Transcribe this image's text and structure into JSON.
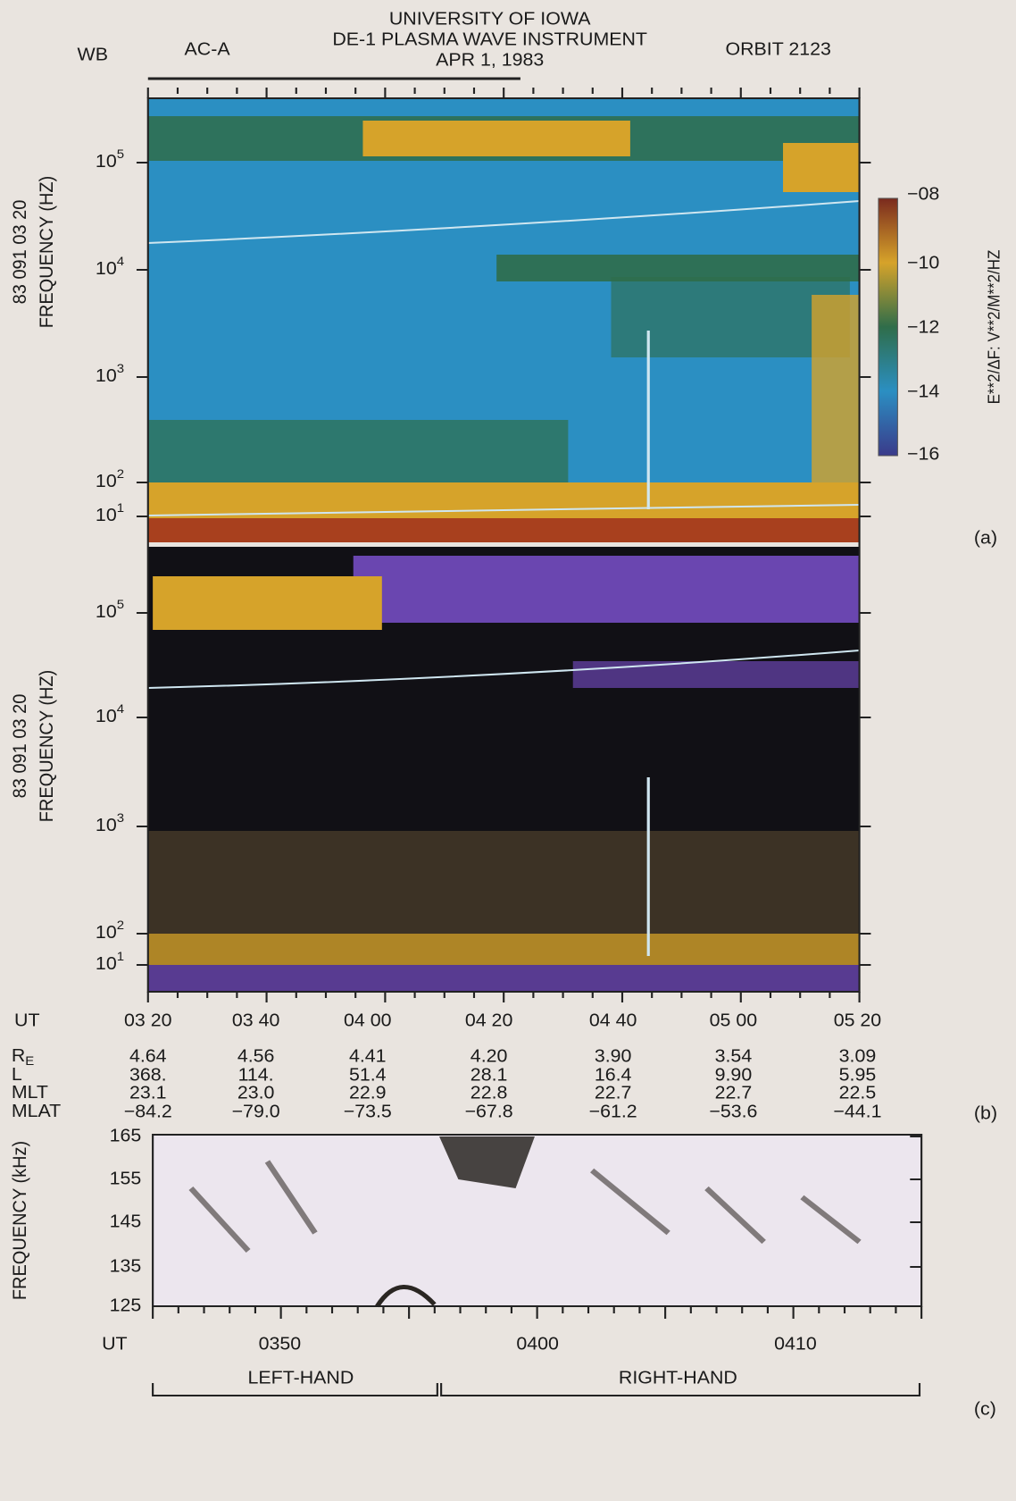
{
  "header": {
    "instrument_mode": "WB",
    "antenna": "AC-A",
    "title_lines": [
      "UNIVERSITY OF IOWA",
      "DE-1 PLASMA WAVE INSTRUMENT",
      "APR 1, 1983"
    ],
    "orbit": "ORBIT 2123"
  },
  "panel_a": {
    "y_label_lines": [
      "83 091 03 20",
      "FREQUENCY (HZ)"
    ],
    "y_ticks": [
      {
        "base": "10",
        "exp": "5"
      },
      {
        "base": "10",
        "exp": "4"
      },
      {
        "base": "10",
        "exp": "3"
      },
      {
        "base": "10",
        "exp": "2"
      },
      {
        "base": "10",
        "exp": "1"
      }
    ],
    "colorbar": {
      "label": "E**2/ΔF: V**2/M**2/HZ",
      "ticks": [
        "−08",
        "−10",
        "−12",
        "−14",
        "−16"
      ]
    },
    "tag": "(a)"
  },
  "panel_b": {
    "y_label_lines": [
      "83 091 03 20",
      "FREQUENCY (HZ)"
    ],
    "y_ticks": [
      {
        "base": "10",
        "exp": "5"
      },
      {
        "base": "10",
        "exp": "4"
      },
      {
        "base": "10",
        "exp": "3"
      },
      {
        "base": "10",
        "exp": "2"
      },
      {
        "base": "10",
        "exp": "1"
      }
    ],
    "tag": "(b)"
  },
  "ephemeris": {
    "time_label": "UT",
    "times": [
      "03 20",
      "03 40",
      "04 00",
      "04 20",
      "04 40",
      "05 00",
      "05 20"
    ],
    "rows": [
      {
        "label": {
          "base": "R",
          "sub": "E"
        },
        "values": [
          "4.64",
          "4.56",
          "4.41",
          "4.20",
          "3.90",
          "3.54",
          "3.09"
        ]
      },
      {
        "label": {
          "base": "L"
        },
        "values": [
          "368.",
          "114.",
          "51.4",
          "28.1",
          "16.4",
          "9.90",
          "5.95"
        ]
      },
      {
        "label": {
          "base": "MLT"
        },
        "values": [
          "23.1",
          "23.0",
          "22.9",
          "22.8",
          "22.7",
          "22.7",
          "22.5"
        ]
      },
      {
        "label": {
          "base": "MLAT"
        },
        "values": [
          "−84.2",
          "−79.0",
          "−73.5",
          "−67.8",
          "−61.2",
          "−53.6",
          "−44.1"
        ]
      }
    ]
  },
  "panel_c": {
    "y_label": "FREQUENCY (kHz)",
    "y_ticks": [
      "165",
      "155",
      "145",
      "135",
      "125"
    ],
    "x_label": "UT",
    "x_ticks": [
      "0350",
      "0400",
      "0410"
    ],
    "brackets": [
      "LEFT-HAND",
      "RIGHT-HAND"
    ],
    "tag": "(c)"
  }
}
